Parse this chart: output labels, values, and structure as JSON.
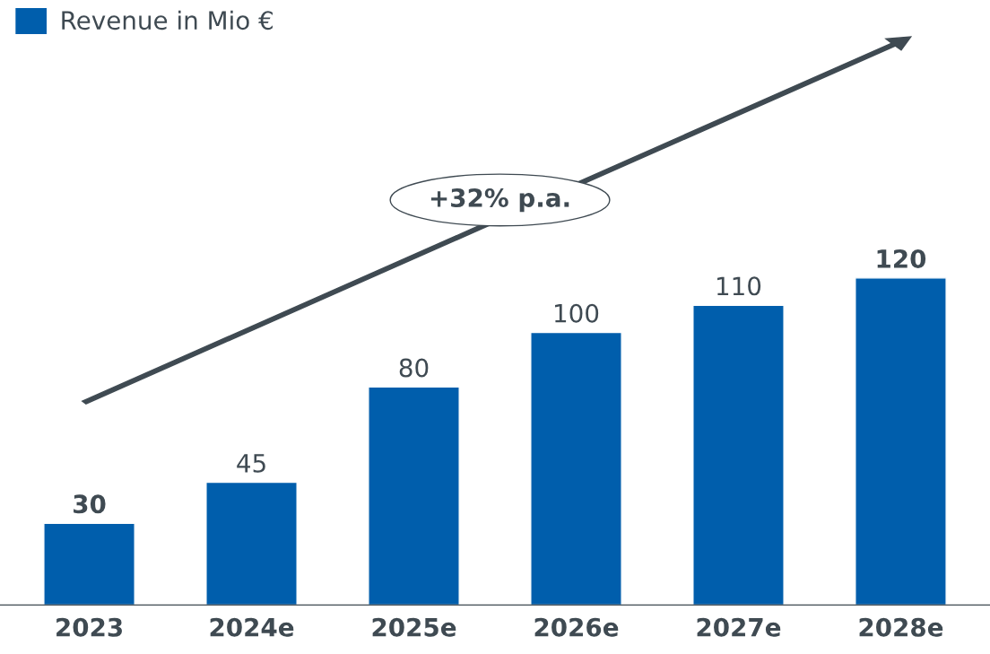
{
  "chart_data": {
    "type": "bar",
    "categories": [
      "2023",
      "2024e",
      "2025e",
      "2026e",
      "2027e",
      "2028e"
    ],
    "series": [
      {
        "name": "Revenue in Mio €",
        "color": "#005eac",
        "values": [
          30,
          45,
          80,
          100,
          110,
          120
        ]
      }
    ],
    "data_labels": true,
    "legend": "top left",
    "grid": false,
    "annotations": [
      "+32% p.a."
    ]
  }
}
